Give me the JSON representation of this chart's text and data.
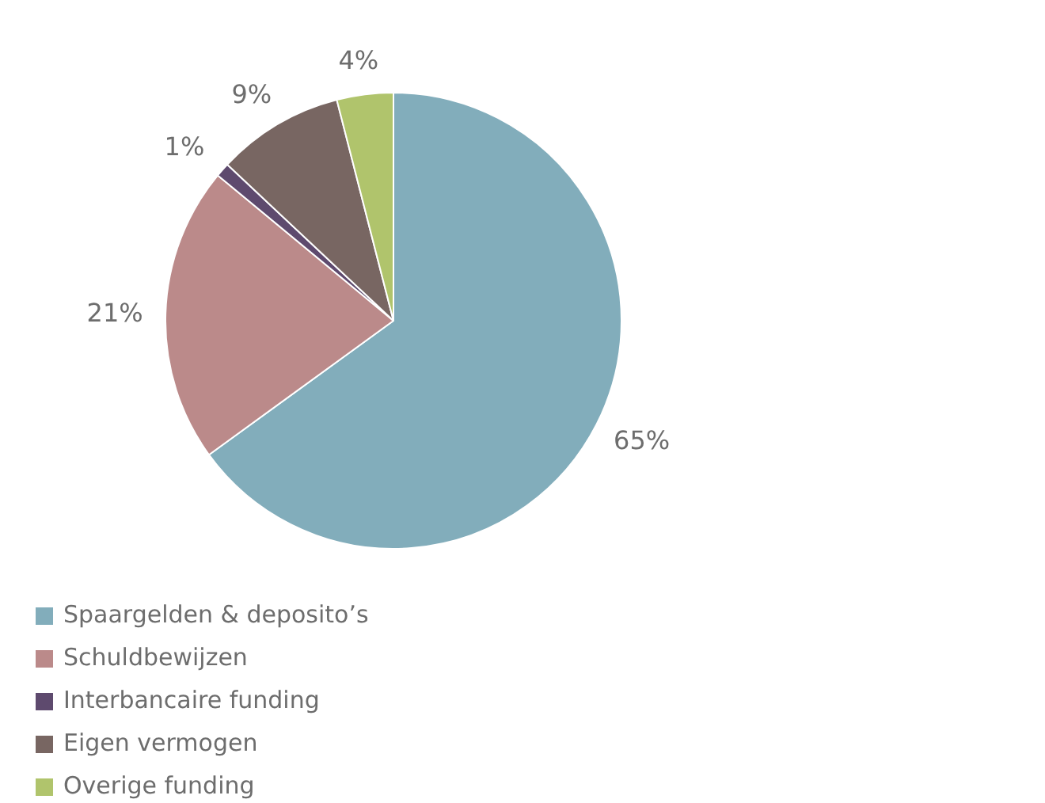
{
  "chart_data": {
    "type": "pie",
    "categories": [
      "Spaargelden & deposito’s",
      "Schuldbewijzen",
      "Interbancaire funding",
      "Eigen vermogen",
      "Overige funding"
    ],
    "values": [
      65,
      21,
      1,
      9,
      4
    ],
    "colors": [
      "#82adbb",
      "#bb8a8a",
      "#5e4a6e",
      "#786662",
      "#b0c46c"
    ],
    "value_labels": [
      "65%",
      "21%",
      "1%",
      "9%",
      "4%"
    ],
    "legend": "bottom"
  }
}
